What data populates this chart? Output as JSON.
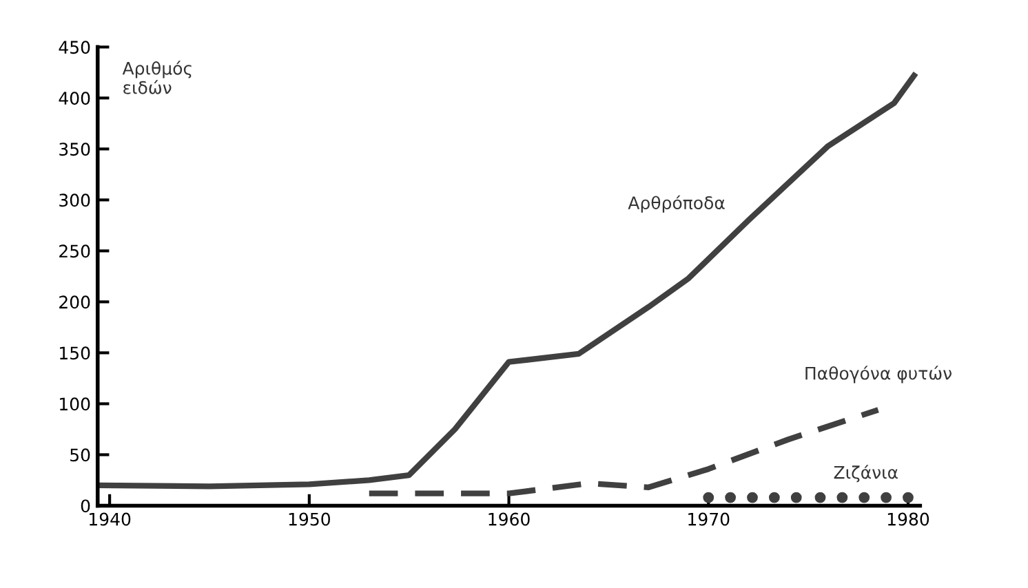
{
  "chart_data": {
    "type": "line",
    "ylabel": "Αριθμός\nειδών",
    "xlim": [
      1939.4,
      1980.6
    ],
    "xticks": [
      1940,
      1950,
      1960,
      1970,
      1980
    ],
    "ylim": [
      0,
      450
    ],
    "yticks": [
      0,
      50,
      100,
      150,
      200,
      250,
      300,
      350,
      400,
      450
    ],
    "grid": false,
    "legend": false,
    "series": [
      {
        "name": "Αρθρόποδα",
        "color": "#404040",
        "line_style": "solid",
        "x": [
          1939.4,
          1945,
          1950,
          1953,
          1955,
          1957.3,
          1960,
          1963.5,
          1967,
          1969,
          1972,
          1976,
          1979.3,
          1980.3
        ],
        "values": [
          20,
          19,
          21,
          25,
          30,
          75,
          141,
          149,
          195,
          223,
          280,
          353,
          395,
          422
        ]
      },
      {
        "name": "Παθογόνα φυτών",
        "color": "#404040",
        "line_style": "dashed",
        "x": [
          1953,
          1960,
          1964,
          1967,
          1970,
          1974,
          1978.5
        ],
        "values": [
          12,
          12,
          22,
          18,
          36,
          65,
          94
        ]
      },
      {
        "name": "Ζιζάνια",
        "color": "#404040",
        "type": "scatter",
        "marker": "circle",
        "x": [
          1970,
          1971.1,
          1972.2,
          1973.3,
          1974.4,
          1975.6,
          1976.7,
          1977.8,
          1978.9,
          1980
        ],
        "values": [
          8,
          8,
          8,
          8,
          8,
          8,
          8,
          8,
          8,
          8
        ]
      }
    ]
  }
}
